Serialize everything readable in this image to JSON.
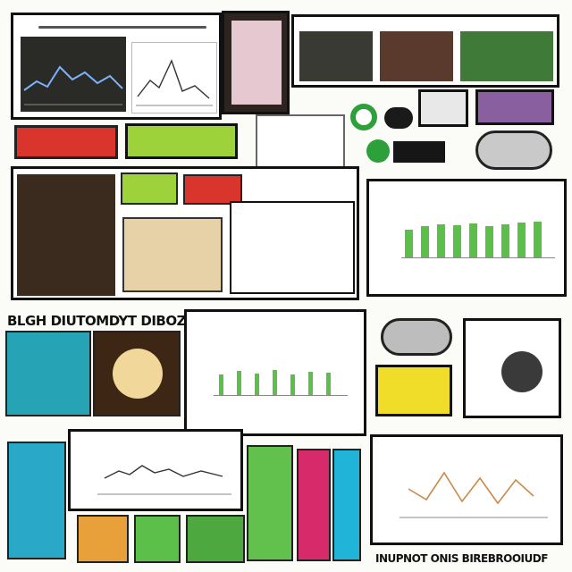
{
  "sections": {
    "mid_left_heading": "BLGH DIUTOMDYT DIBOZH",
    "footer_caption": "INUPNOT ONIS BIREBROOIUDF"
  },
  "colors": {
    "ink": "#111111",
    "green": "#5bbf4a",
    "red": "#d9352c",
    "yellow": "#e8d22a",
    "cyan": "#1fb4d8",
    "magenta": "#d62a6a",
    "purple": "#7a2a8a"
  },
  "icons": [
    "gear-icon",
    "toggle-icon",
    "mouse-icon",
    "flashlight-icon",
    "headphone-icon",
    "shell-icon"
  ]
}
